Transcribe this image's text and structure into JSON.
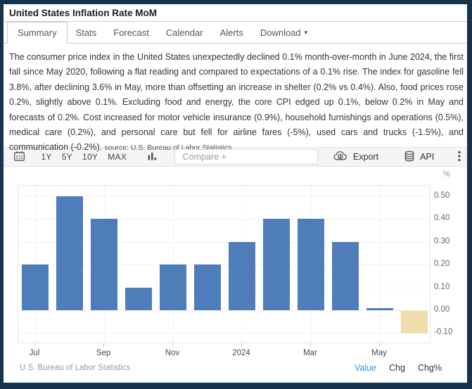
{
  "page": {
    "title": "United States Inflation Rate MoM"
  },
  "tabs": [
    {
      "label": "Summary",
      "active": true
    },
    {
      "label": "Stats",
      "active": false
    },
    {
      "label": "Forecast",
      "active": false
    },
    {
      "label": "Calendar",
      "active": false
    },
    {
      "label": "Alerts",
      "active": false
    },
    {
      "label": "Download",
      "active": false,
      "has_menu": true
    }
  ],
  "summary": {
    "text": "The consumer price index in the United States unexpectedly declined 0.1% month-over-month in June 2024, the first fall since May 2020, following a flat reading and compared to expectations of a 0.1% rise. The index for gasoline fell 3.8%, after declining 3.6% in May, more than offsetting an increase in shelter (0.2% vs 0.4%). Also, food prices rose 0.2%, slightly above 0.1%. Excluding food and energy, the core CPI edged up 0.1%, below 0.2% in May and forecasts of 0.2%. Cost increased for motor vehicle insurance (0.9%), household furnishings and operations (0.5%), medical care (0.2%), and personal care but fell for airline fares (-5%), used cars and trucks (-1.5%), and communication (-0.2%).",
    "source_note": "source: U.S. Bureau of Labor Statistics"
  },
  "toolbar": {
    "ranges": [
      "1Y",
      "5Y",
      "10Y",
      "MAX"
    ],
    "compare_placeholder": "Compare +",
    "export_label": "Export",
    "api_label": "API",
    "icons": [
      "calendar-icon",
      "bar-chart-icon",
      "cloud-download-icon",
      "database-icon",
      "kebab-menu-icon"
    ]
  },
  "chart_data": {
    "type": "bar",
    "title": "United States Inflation Rate MoM",
    "unit": "%",
    "categories": [
      "Jul 2023",
      "Aug 2023",
      "Sep 2023",
      "Oct 2023",
      "Nov 2023",
      "Dec 2023",
      "Jan 2024",
      "Feb 2024",
      "Mar 2024",
      "Apr 2024",
      "May 2024",
      "Jun 2024"
    ],
    "values": [
      0.2,
      0.5,
      0.4,
      0.1,
      0.2,
      0.2,
      0.3,
      0.4,
      0.4,
      0.3,
      0.0,
      -0.1
    ],
    "x_tick_labels": [
      "Jul",
      "Sep",
      "Nov",
      "2024",
      "Mar",
      "May"
    ],
    "x_tick_positions": [
      0,
      2,
      4,
      6,
      8,
      10
    ],
    "y_ticks": [
      0.5,
      0.4,
      0.3,
      0.2,
      0.1,
      0.0,
      -0.1
    ],
    "ylim": [
      -0.148,
      0.546
    ],
    "grid": true,
    "legend": "none",
    "bar_color": "#4e7dba",
    "last_bar_color": "#f0dcab"
  },
  "footer": {
    "source": "U.S. Bureau of Labor Statistics",
    "modes": [
      {
        "label": "Value",
        "active": true
      },
      {
        "label": "Chg",
        "active": false
      },
      {
        "label": "Chg%",
        "active": false
      }
    ]
  },
  "colors": {
    "frame_border": "#16334d",
    "accent_blue": "#2b96f1",
    "bar_blue": "#4e7dba",
    "bar_beige": "#f0dcab"
  }
}
